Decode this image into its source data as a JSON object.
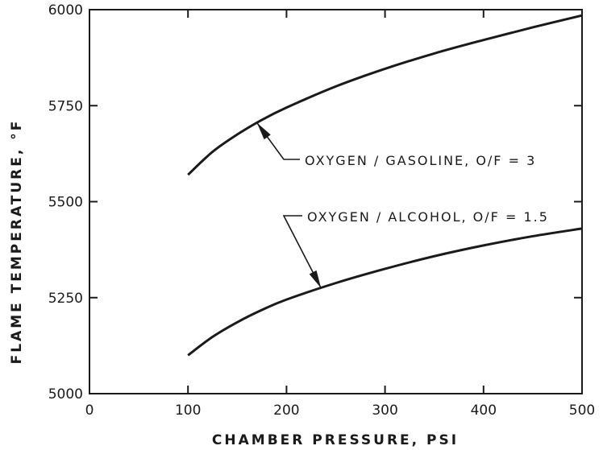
{
  "chart_data": {
    "type": "line",
    "title": "",
    "xlabel": "CHAMBER PRESSURE, PSI",
    "ylabel": "FLAME TEMPERATURE, °F",
    "xlim": [
      0,
      500
    ],
    "ylim": [
      5000,
      6000
    ],
    "x_ticks": [
      0,
      100,
      200,
      300,
      400,
      500
    ],
    "y_ticks": [
      5000,
      5250,
      5500,
      5750,
      6000
    ],
    "grid": false,
    "series": [
      {
        "name": "OXYGEN / GASOLINE, O/F = 3",
        "x": [
          100,
          125,
          150,
          175,
          200,
          250,
          300,
          350,
          400,
          450,
          500
        ],
        "y": [
          5570,
          5630,
          5675,
          5713,
          5745,
          5800,
          5846,
          5886,
          5921,
          5954,
          5985
        ]
      },
      {
        "name": "OXYGEN / ALCOHOL, O/F = 1.5",
        "x": [
          100,
          125,
          150,
          175,
          200,
          250,
          300,
          350,
          400,
          450,
          500
        ],
        "y": [
          5100,
          5148,
          5186,
          5218,
          5245,
          5288,
          5325,
          5358,
          5386,
          5410,
          5430
        ]
      }
    ],
    "annotations": [
      {
        "text": "OXYGEN / GASOLINE, O/F = 3",
        "series": 0,
        "points_to_x": 170
      },
      {
        "text": "OXYGEN / ALCOHOL, O/F = 1.5",
        "series": 1,
        "points_to_x": 235
      }
    ]
  }
}
